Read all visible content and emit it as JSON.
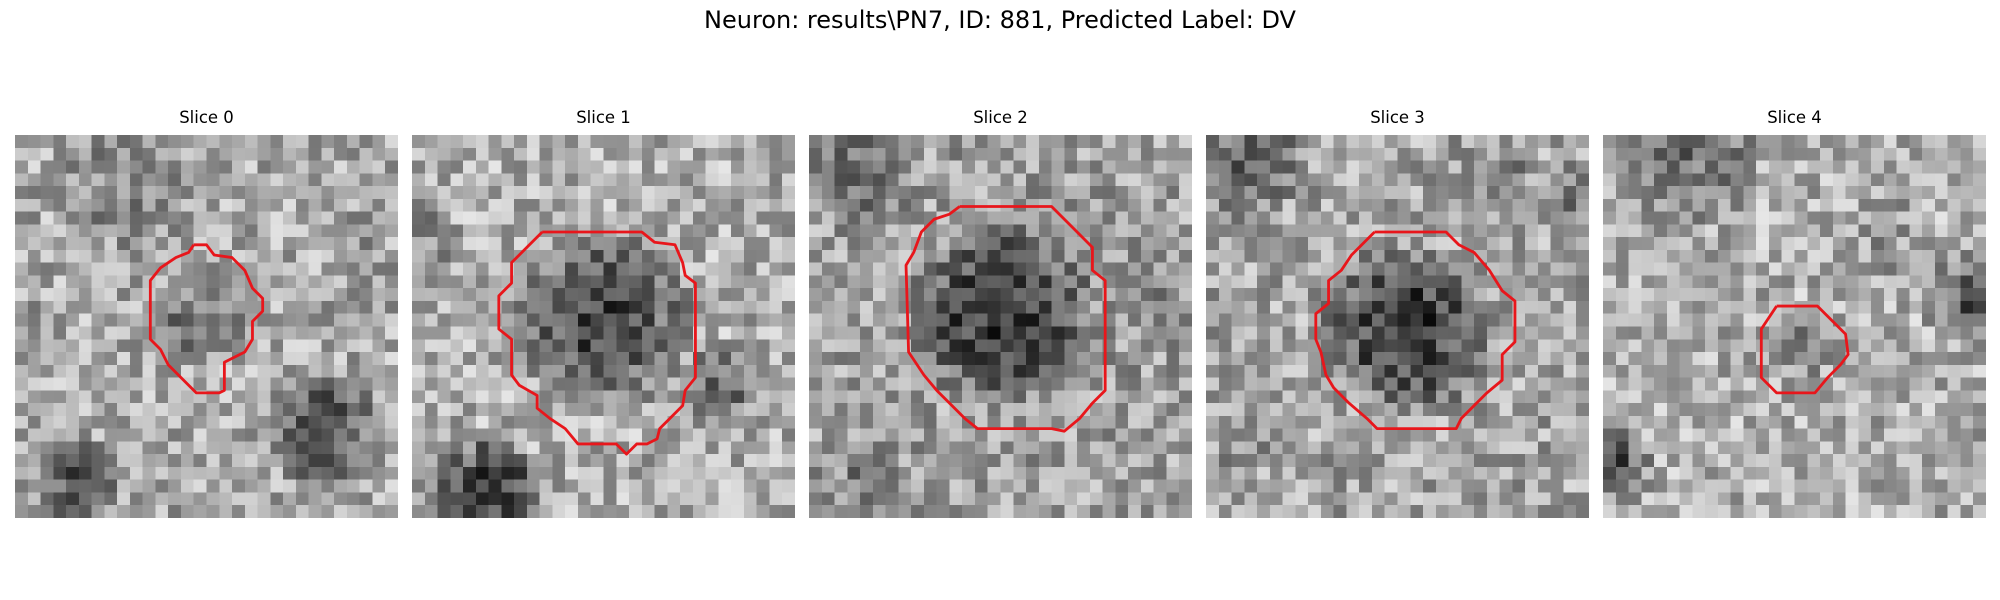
{
  "figure": {
    "suptitle": "Neuron: results\\PN7, ID: 881, Predicted Label: DV",
    "colormap": "gray",
    "contour_color": "#e8161b"
  },
  "panels": [
    {
      "title": "Slice 0",
      "icon": "micrograph-slice-0"
    },
    {
      "title": "Slice 1",
      "icon": "micrograph-slice-1"
    },
    {
      "title": "Slice 2",
      "icon": "micrograph-slice-2"
    },
    {
      "title": "Slice 3",
      "icon": "micrograph-slice-3"
    },
    {
      "title": "Slice 4",
      "icon": "micrograph-slice-4"
    }
  ]
}
